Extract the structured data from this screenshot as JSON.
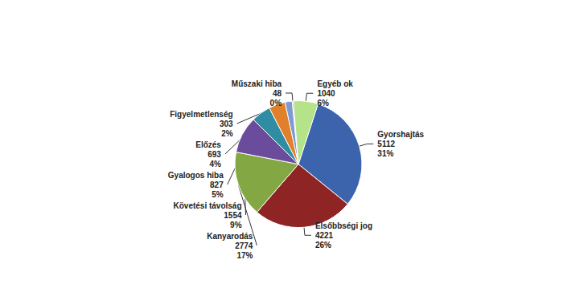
{
  "chart_data": {
    "type": "pie",
    "categories": [
      "Gyorshajtás",
      "Elsőbbségi jog",
      "Kanyarodás",
      "Követési távolság",
      "Gyalogos hiba",
      "Előzés",
      "Figyelmetlenség",
      "Műszaki hiba",
      "Egyéb ok"
    ],
    "values": [
      5112,
      4221,
      2774,
      1554,
      827,
      693,
      303,
      48,
      1040
    ],
    "percentages": [
      31,
      26,
      17,
      9,
      5,
      4,
      2,
      0,
      6
    ],
    "percentage_labels": [
      "31%",
      "26%",
      "17%",
      "9%",
      "5%",
      "4%",
      "2%",
      "0%",
      "6%"
    ],
    "colors": [
      "#3b64ad",
      "#8e2424",
      "#83a843",
      "#6b4c9c",
      "#2f8ca3",
      "#e0802a",
      "#7d9bd3",
      "#c9413f",
      "#b4e38a"
    ],
    "data_labels": true
  }
}
